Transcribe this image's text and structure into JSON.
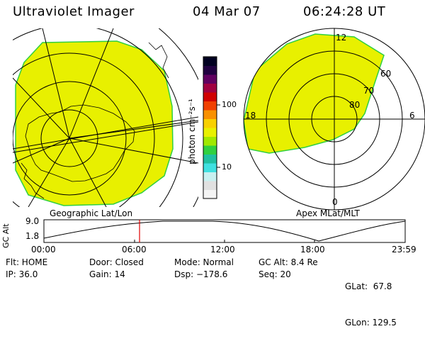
{
  "header": {
    "instrument": "Ultraviolet Imager",
    "date": "04 Mar 07",
    "time": "06:24:28 UT"
  },
  "panels": {
    "left_label": "Geographic Lat/Lon",
    "right_label": "Apex MLat/MLT"
  },
  "colorbar": {
    "unit_label": "photon cm⁻²s⁻¹",
    "tick_100": "100",
    "tick_10": "10",
    "colors": [
      "#f4f4f4",
      "#e0e0e0",
      "#c8f0f0",
      "#40e0e0",
      "#20c0a0",
      "#30d040",
      "#a0e800",
      "#e8f000",
      "#f8d000",
      "#f89000",
      "#f04000",
      "#d00000",
      "#a00040",
      "#600060",
      "#200040",
      "#000020"
    ]
  },
  "right_plot": {
    "mlt_12": "12",
    "mlt_18": "18",
    "mlt_6": "6",
    "mlt_0": "0",
    "lat_60": "60",
    "lat_70": "70",
    "lat_80": "80"
  },
  "altitude_plot": {
    "axis_label": "GC Alt",
    "y_max": "9.0",
    "y_min": "1.8",
    "x_ticks": [
      "00:00",
      "06:00",
      "12:00",
      "18:00",
      "23:59"
    ]
  },
  "status": {
    "flt": "Flt: HOME",
    "ip": "IP: 36.0",
    "door": "Door: Closed",
    "gain": "Gain: 14",
    "mode": "Mode: Normal",
    "dsp": "Dsp: −178.6",
    "gc_alt": "GC Alt: 8.4 Re",
    "seq": "Seq: 20",
    "glat": "GLat:  67.8",
    "glon": "GLon: 129.5"
  },
  "colors": {
    "aurora_fill": "#e8f000",
    "aurora_edge": "#30d040",
    "current_time_marker": "#e00000"
  }
}
